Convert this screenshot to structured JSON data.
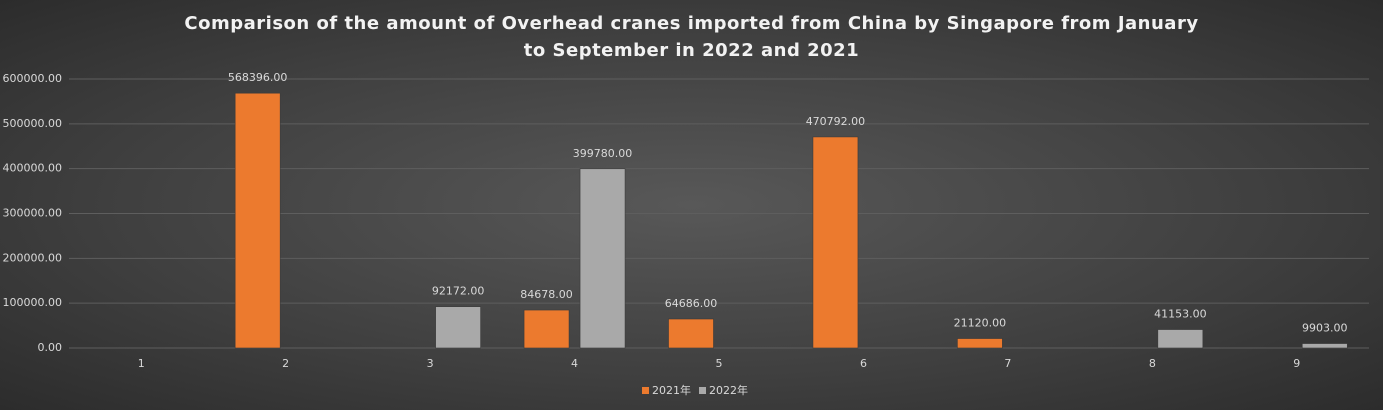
{
  "chart_data": {
    "type": "bar",
    "title": "Comparison of the amount of Overhead cranes imported from China by Singapore from January to September in 2022 and 2021",
    "categories": [
      "1",
      "2",
      "3",
      "4",
      "5",
      "6",
      "7",
      "8",
      "9"
    ],
    "series": [
      {
        "name": "2021年",
        "color": "#ec7a2e",
        "values": [
          null,
          568396,
          null,
          84678,
          64686,
          470792,
          21120,
          null,
          null
        ],
        "value_labels": [
          null,
          "568396.00",
          null,
          "84678.00",
          "64686.00",
          "470792.00",
          "21120.00",
          null,
          null
        ]
      },
      {
        "name": "2022年",
        "color": "#a9a9a9",
        "values": [
          null,
          null,
          92172,
          399780,
          null,
          null,
          null,
          41153,
          9903
        ],
        "value_labels": [
          null,
          null,
          "92172.00",
          "399780.00",
          null,
          null,
          null,
          "41153.00",
          "9903.00"
        ]
      }
    ],
    "ylim": [
      0,
      600000
    ],
    "yticks": [
      {
        "value": 0,
        "label": "0.00"
      },
      {
        "value": 100000,
        "label": "100000.00"
      },
      {
        "value": 200000,
        "label": "200000.00"
      },
      {
        "value": 300000,
        "label": "300000.00"
      },
      {
        "value": 400000,
        "label": "400000.00"
      },
      {
        "value": 500000,
        "label": "500000.00"
      },
      {
        "value": 600000,
        "label": "600000.00"
      }
    ],
    "grid": true,
    "legend": "bottom"
  }
}
